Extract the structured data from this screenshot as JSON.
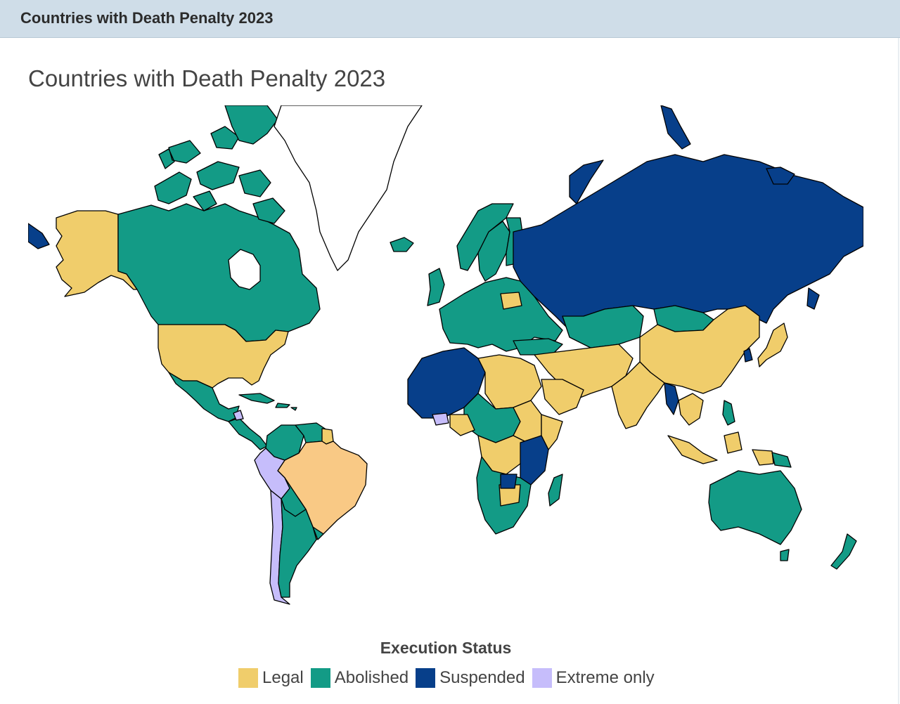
{
  "header": {
    "title": "Countries with Death Penalty 2023"
  },
  "map": {
    "title": "Countries with Death Penalty 2023",
    "colors": {
      "legal": "#f0cd6b",
      "abolished": "#139b86",
      "suspended": "#073f8a",
      "extreme": "#c6bdfb",
      "brazil": "#f9c985",
      "outline": "#000000",
      "greenland": "#ffffff"
    }
  },
  "legend": {
    "title": "Execution Status",
    "items": [
      {
        "label": "Legal",
        "color": "#f0cd6b"
      },
      {
        "label": "Abolished",
        "color": "#139b86"
      },
      {
        "label": "Suspended",
        "color": "#073f8a"
      },
      {
        "label": "Extreme only",
        "color": "#c6bdfb"
      }
    ]
  }
}
